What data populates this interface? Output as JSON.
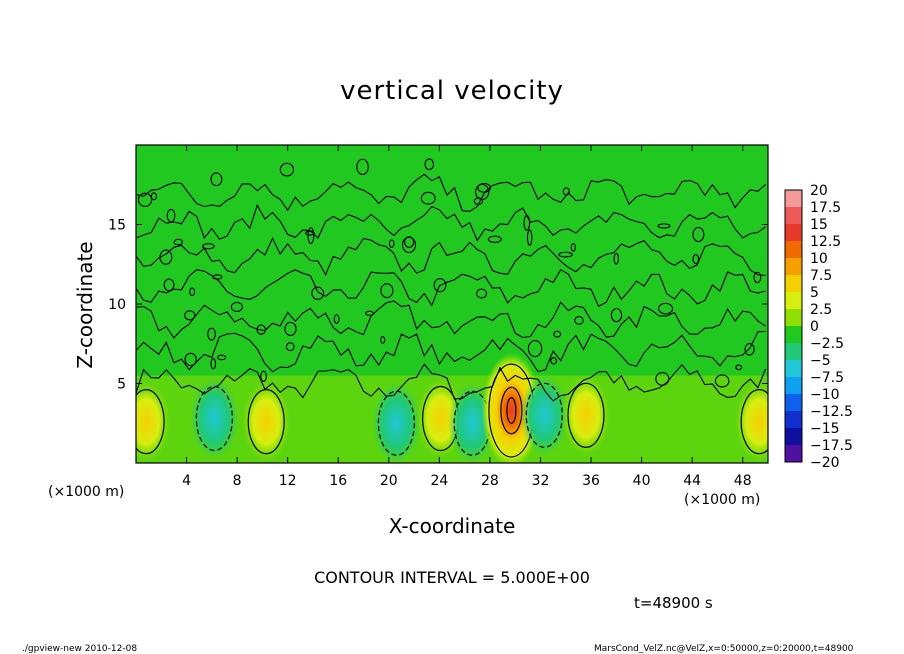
{
  "chart_data": {
    "type": "heatmap",
    "title": "vertical velocity",
    "xlabel": "X-coordinate",
    "ylabel": "Z-coordinate",
    "x_unit_label": "(×1000 m)",
    "x_ticks": [
      4,
      8,
      12,
      16,
      20,
      24,
      28,
      32,
      36,
      40,
      44,
      48
    ],
    "y_ticks": [
      5,
      10,
      15
    ],
    "xlim": [
      0,
      50
    ],
    "ylim": [
      0,
      20
    ],
    "colorbar": {
      "labels": [
        "20",
        "17.5",
        "15",
        "12.5",
        "10",
        "7.5",
        "5",
        "2.5",
        "0",
        "−2.5",
        "−5",
        "−7.5",
        "−10",
        "−12.5",
        "−15",
        "−17.5",
        "−20"
      ],
      "colors": [
        "#f59a9a",
        "#ee5a5a",
        "#e83a2a",
        "#f06a00",
        "#f5a000",
        "#f5d000",
        "#d8ee10",
        "#8ee000",
        "#20c820",
        "#20c878",
        "#20c8d8",
        "#10a0f0",
        "#1060f0",
        "#1030d0",
        "#1010a0",
        "#5010a0"
      ]
    },
    "features": [
      {
        "kind": "updraft",
        "x": 0.8,
        "z": 2.6,
        "value": 7.5
      },
      {
        "kind": "downdraft",
        "x": 6.2,
        "z": 2.8,
        "value": -5
      },
      {
        "kind": "updraft",
        "x": 10.3,
        "z": 2.6,
        "value": 7.5
      },
      {
        "kind": "downdraft",
        "x": 20.6,
        "z": 2.5,
        "value": -7.5
      },
      {
        "kind": "updraft",
        "x": 24.1,
        "z": 2.8,
        "value": 7.5
      },
      {
        "kind": "downdraft",
        "x": 26.6,
        "z": 2.5,
        "value": -7.5
      },
      {
        "kind": "updraft",
        "x": 29.7,
        "z": 3.3,
        "value": 15
      },
      {
        "kind": "downdraft",
        "x": 32.3,
        "z": 3.0,
        "value": -7.5
      },
      {
        "kind": "updraft",
        "x": 35.6,
        "z": 3.0,
        "value": 5
      },
      {
        "kind": "updraft",
        "x": 49.3,
        "z": 2.6,
        "value": 7.5
      }
    ],
    "contour_interval": "CONTOUR INTERVAL = 5.000E+00",
    "time": "t=48900 s"
  },
  "footer": {
    "left": "./gpview-new  2010-12-08",
    "right": "MarsCond_VelZ.nc@VelZ,x=0:50000,z=0:20000,t=48900"
  }
}
